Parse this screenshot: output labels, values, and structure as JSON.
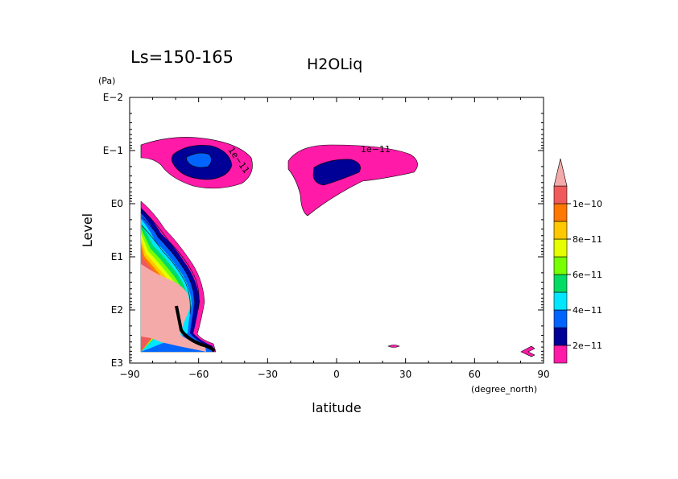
{
  "chart_data": {
    "type": "contour",
    "title": "H2OLiq",
    "subtitle": "Ls=150-165",
    "xlabel": "latitude",
    "xunits": "(degree_north)",
    "ylabel": "Level",
    "yunits": "(Pa)",
    "xlim": [
      -90,
      90
    ],
    "ylim": [
      1000,
      0.01
    ],
    "yscale": "log",
    "x_ticks": [
      -90,
      -60,
      -30,
      0,
      30,
      60,
      90
    ],
    "x_tick_labels": [
      "−90",
      "−60",
      "−30",
      "0",
      "30",
      "60",
      "90"
    ],
    "y_ticks": [
      0.01,
      0.1,
      1,
      10,
      100,
      1000
    ],
    "y_tick_labels": [
      "E−2",
      "E−1",
      "E0",
      "E1",
      "E2",
      "E3"
    ],
    "contour_labels": [
      "1e−11",
      "1e−11"
    ],
    "colorbar": {
      "levels": [
        1e-11,
        2e-11,
        3e-11,
        4e-11,
        5e-11,
        6e-11,
        7e-11,
        8e-11,
        9e-11,
        1e-10,
        1.1e-10
      ],
      "tick_labels": [
        "2e−11",
        "4e−11",
        "6e−11",
        "8e−11",
        "1e−10"
      ],
      "colors": [
        "#ff1aa8",
        "#000096",
        "#0064ff",
        "#00e6ff",
        "#00dc64",
        "#78ff00",
        "#e6ff00",
        "#ffc800",
        "#ff7800",
        "#f05a5a",
        "#f5aaaa"
      ],
      "extend": "max"
    }
  }
}
